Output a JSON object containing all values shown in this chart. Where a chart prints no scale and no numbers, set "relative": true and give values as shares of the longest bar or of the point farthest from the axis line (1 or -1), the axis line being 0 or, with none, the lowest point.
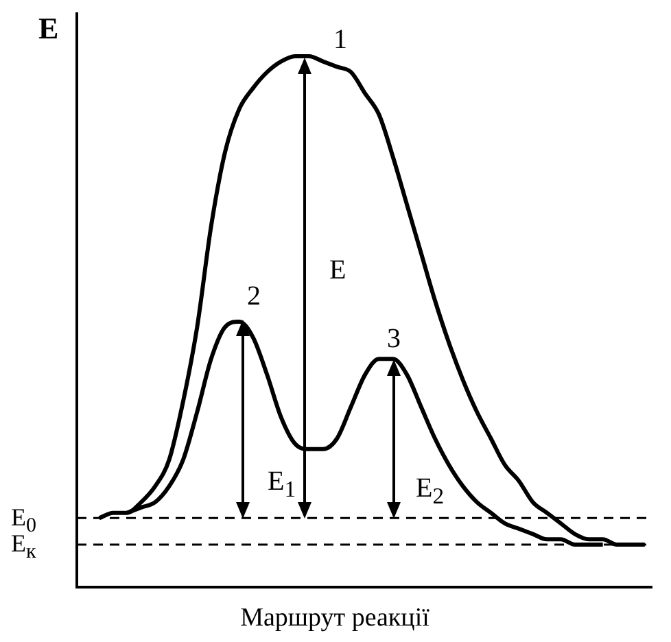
{
  "chart_data": {
    "type": "line",
    "relative": true,
    "ylabel": "E",
    "xlabel": "Маршрут реакції",
    "categories": [
      null,
      null,
      null,
      null,
      null,
      null,
      null,
      null,
      null,
      null,
      null,
      null,
      null,
      null,
      null,
      null,
      null,
      null,
      null,
      null,
      null,
      null,
      null,
      null,
      null,
      null,
      null,
      null,
      null,
      null,
      null,
      null,
      null,
      null,
      null,
      null,
      null,
      null,
      null,
      null
    ],
    "series": [
      {
        "color": "#000000",
        "values": [
          0.13,
          0.14,
          0.14,
          0.16,
          0.19,
          0.24,
          0.35,
          0.49,
          0.68,
          0.82,
          0.9,
          0.94,
          0.97,
          0.99,
          1,
          1,
          0.99,
          0.98,
          0.97,
          0.93,
          0.89,
          0.81,
          0.72,
          0.63,
          0.54,
          0.46,
          0.39,
          0.33,
          0.28,
          0.23,
          0.2,
          0.16,
          0.14,
          0.12,
          0.1,
          0.09,
          0.09,
          0.08,
          0.08,
          0.08
        ]
      },
      {
        "color": "#000000",
        "values": [
          null,
          null,
          0.14,
          0.15,
          0.16,
          0.19,
          0.24,
          0.33,
          0.43,
          0.49,
          0.5,
          0.47,
          0.4,
          0.32,
          0.27,
          0.26,
          0.26,
          0.28,
          0.34,
          0.4,
          0.43,
          0.43,
          0.4,
          0.34,
          0.28,
          0.23,
          0.19,
          0.16,
          0.14,
          0.12,
          0.11,
          0.1,
          0.09,
          0.09,
          0.08,
          0.08,
          0.08,
          null,
          null,
          null
        ]
      }
    ],
    "ref_lines": [
      {
        "axis": "y",
        "value": 0.13,
        "label": "E$_{0}$",
        "color": "#000000",
        "line_style": "dashed"
      },
      {
        "axis": "y",
        "value": 0.08,
        "label": "E$_{к}$",
        "color": "#000000",
        "line_style": "dashed"
      }
    ],
    "annotations": [
      "1",
      "2",
      "3",
      "E",
      "E$_{1}$",
      "E$_{2}$"
    ],
    "marker": "none",
    "line_style": "solid",
    "grid": false,
    "legend": false
  }
}
